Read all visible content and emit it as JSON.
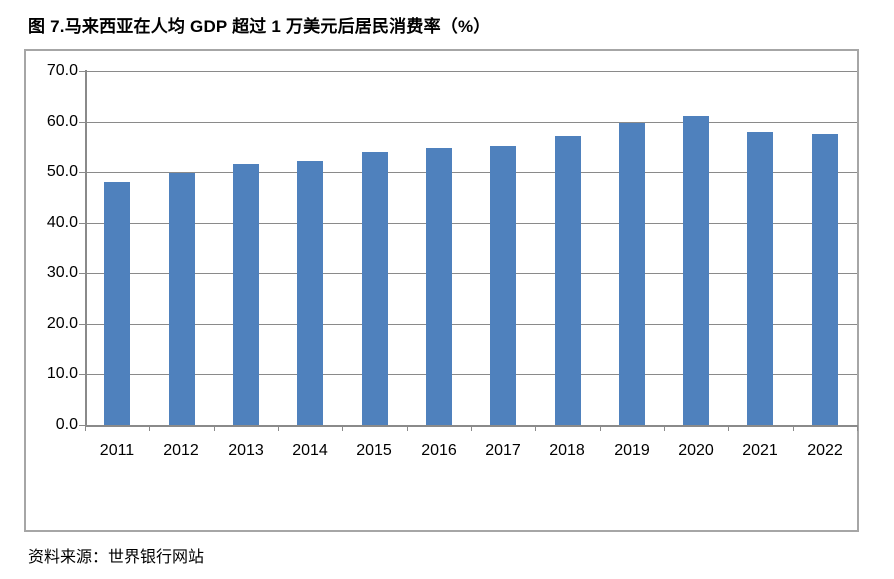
{
  "chart_data": {
    "type": "bar",
    "title": "图 7.马来西亚在人均 GDP 超过 1 万美元后居民消费率（%）",
    "source": "资料来源：世界银行网站",
    "categories": [
      "2011",
      "2012",
      "2013",
      "2014",
      "2015",
      "2016",
      "2017",
      "2018",
      "2019",
      "2020",
      "2021",
      "2022"
    ],
    "values": [
      48.0,
      49.9,
      51.6,
      52.3,
      53.9,
      54.7,
      55.2,
      57.2,
      59.7,
      61.1,
      57.9,
      57.5
    ],
    "xlabel": "",
    "ylabel": "",
    "ylim": [
      0,
      70
    ],
    "ytick_step": 10,
    "ytick_labels": [
      "0.0",
      "10.0",
      "20.0",
      "30.0",
      "40.0",
      "50.0",
      "60.0",
      "70.0"
    ],
    "grid": true,
    "legend": "none",
    "bar_color": "#4F81BD",
    "grid_color": "#8A8A8A",
    "axis_color": "#8A8A8A",
    "frame_border_color": "#A6A6A6",
    "text_color": "#000000"
  }
}
